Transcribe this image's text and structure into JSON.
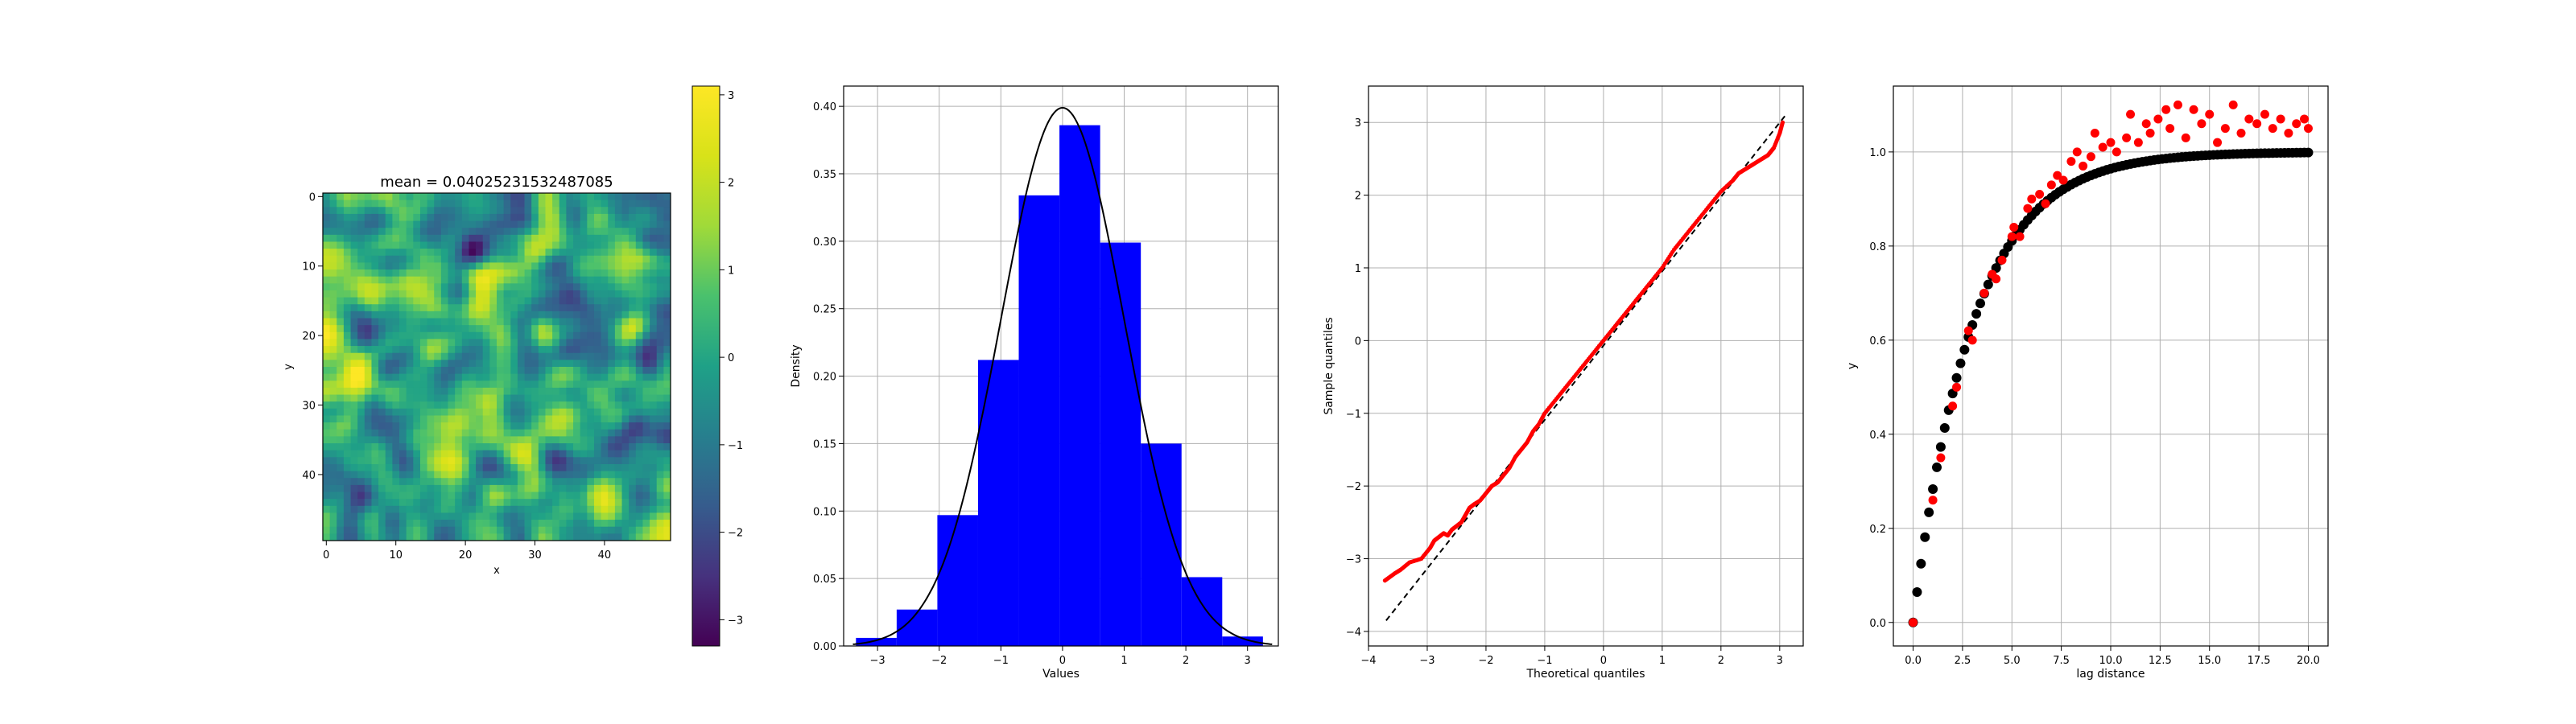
{
  "heatmap": {
    "title": "mean = 0.04025231532487085",
    "xlabel": "x",
    "ylabel": "y",
    "grid_size": 50,
    "xticks": [
      0,
      10,
      20,
      30,
      40
    ],
    "yticks": [
      0,
      10,
      20,
      30,
      40
    ],
    "colorbar_ticks": [
      3,
      2,
      1,
      0,
      -1,
      -2,
      -3
    ],
    "colorbar_tick_labels": [
      "3",
      "2",
      "1",
      "0",
      "−1",
      "−2",
      "−3"
    ],
    "vmin": -3.3,
    "vmax": 3.1,
    "colormap": "viridis"
  },
  "chart_data": [
    {
      "type": "heatmap",
      "title": "mean = 0.04025231532487085",
      "xlabel": "x",
      "ylabel": "y",
      "xlim": [
        0,
        49
      ],
      "ylim": [
        0,
        49
      ],
      "value_range": [
        -3.3,
        3.1
      ]
    },
    {
      "type": "bar",
      "subtype": "histogram",
      "xlabel": "Values",
      "ylabel": "Density",
      "bin_edges": [
        -3.35,
        -2.69,
        -2.03,
        -1.37,
        -0.71,
        -0.05,
        0.61,
        1.27,
        1.93,
        2.59,
        3.25
      ],
      "values": [
        0.006,
        0.027,
        0.097,
        0.212,
        0.334,
        0.386,
        0.299,
        0.15,
        0.051,
        0.007
      ],
      "bar_color": "#0000ff",
      "overlay": "normal pdf (mean 0, sd 1)",
      "xlim": [
        -3.55,
        3.5
      ],
      "ylim": [
        0,
        0.415
      ],
      "xticks": [
        -3,
        -2,
        -1,
        0,
        1,
        2,
        3
      ],
      "xtick_labels": [
        "−3",
        "−2",
        "−1",
        "0",
        "1",
        "2",
        "3"
      ],
      "yticks": [
        0,
        0.05,
        0.1,
        0.15,
        0.2,
        0.25,
        0.3,
        0.35,
        0.4
      ],
      "ytick_labels": [
        "0.00",
        "0.05",
        "0.10",
        "0.15",
        "0.20",
        "0.25",
        "0.30",
        "0.35",
        "0.40"
      ],
      "grid": true
    },
    {
      "type": "scatter",
      "subtype": "qq-plot",
      "xlabel": "Theoretical quantiles",
      "ylabel": "Sample quantiles",
      "xlim": [
        -4,
        3.4
      ],
      "ylim": [
        -4.2,
        3.5
      ],
      "xticks": [
        -4,
        -3,
        -2,
        -1,
        0,
        1,
        2,
        3
      ],
      "xtick_labels": [
        "−4",
        "−3",
        "−2",
        "−1",
        "0",
        "1",
        "2",
        "3"
      ],
      "yticks": [
        -4,
        -3,
        -2,
        -1,
        0,
        1,
        2,
        3
      ],
      "ytick_labels": [
        "−4",
        "−3",
        "−2",
        "−1",
        "0",
        "1",
        "2",
        "3"
      ],
      "reference_line": {
        "x": [
          -3.7,
          3.1
        ],
        "y": [
          -3.85,
          3.1
        ],
        "style": "dashed",
        "color": "#000000"
      },
      "points": {
        "x": [
          -3.72,
          -3.55,
          -3.45,
          -3.3,
          -3.1,
          -2.95,
          -2.88,
          -2.8,
          -2.72,
          -2.65,
          -2.58,
          -2.5,
          -2.42,
          -2.35,
          -2.28,
          -2.2,
          -2.1,
          -2.0,
          -1.9,
          -1.8,
          -1.7,
          -1.6,
          -1.5,
          -1.4,
          -1.3,
          -1.2,
          -1.1,
          -1.0,
          -0.8,
          -0.6,
          -0.4,
          -0.2,
          0.0,
          0.2,
          0.4,
          0.6,
          0.8,
          1.0,
          1.2,
          1.4,
          1.6,
          1.8,
          2.0,
          2.2,
          2.3,
          2.4,
          2.5,
          2.6,
          2.7,
          2.8,
          2.85,
          2.9,
          3.0,
          3.05
        ],
        "y": [
          -3.3,
          -3.2,
          -3.15,
          -3.05,
          -3.0,
          -2.85,
          -2.75,
          -2.7,
          -2.65,
          -2.68,
          -2.6,
          -2.55,
          -2.5,
          -2.4,
          -2.3,
          -2.25,
          -2.2,
          -2.1,
          -2.0,
          -1.95,
          -1.85,
          -1.75,
          -1.6,
          -1.5,
          -1.4,
          -1.25,
          -1.15,
          -1.0,
          -0.8,
          -0.6,
          -0.4,
          -0.2,
          0.0,
          0.2,
          0.4,
          0.6,
          0.8,
          1.0,
          1.25,
          1.45,
          1.65,
          1.85,
          2.05,
          2.2,
          2.3,
          2.35,
          2.4,
          2.45,
          2.5,
          2.55,
          2.6,
          2.65,
          2.85,
          3.0
        ],
        "color": "#ff0000"
      },
      "grid": true
    },
    {
      "type": "scatter",
      "subtype": "variogram",
      "xlabel": "lag distance",
      "ylabel": "y",
      "xlim": [
        -1.0,
        21.0
      ],
      "ylim": [
        -0.05,
        1.14
      ],
      "xticks": [
        0,
        2.5,
        5,
        7.5,
        10,
        12.5,
        15,
        17.5,
        20
      ],
      "xtick_labels": [
        "0.0",
        "2.5",
        "5.0",
        "7.5",
        "10.0",
        "12.5",
        "15.0",
        "17.5",
        "20.0"
      ],
      "yticks": [
        0,
        0.2,
        0.4,
        0.6,
        0.8,
        1.0
      ],
      "ytick_labels": [
        "0.0",
        "0.2",
        "0.4",
        "0.6",
        "0.8",
        "1.0"
      ],
      "series": [
        {
          "color": "#ff0000",
          "x": [
            0.0,
            1.0,
            1.4,
            2.0,
            2.2,
            2.8,
            3.0,
            3.6,
            4.0,
            4.2,
            4.5,
            5.0,
            5.1,
            5.4,
            5.8,
            6.0,
            6.4,
            6.7,
            7.0,
            7.3,
            7.6,
            8.0,
            8.3,
            8.6,
            9.0,
            9.2,
            9.6,
            10.0,
            10.3,
            10.8,
            11.0,
            11.4,
            11.8,
            12.0,
            12.4,
            12.8,
            13.0,
            13.4,
            13.8,
            14.2,
            14.6,
            15.0,
            15.4,
            15.8,
            16.2,
            16.6,
            17.0,
            17.4,
            17.8,
            18.2,
            18.6,
            19.0,
            19.4,
            19.8,
            20.0
          ],
          "y": [
            0.0,
            0.26,
            0.35,
            0.46,
            0.5,
            0.62,
            0.6,
            0.7,
            0.74,
            0.73,
            0.77,
            0.82,
            0.84,
            0.82,
            0.88,
            0.9,
            0.91,
            0.89,
            0.93,
            0.95,
            0.94,
            0.98,
            1.0,
            0.97,
            0.99,
            1.04,
            1.01,
            1.02,
            1.0,
            1.03,
            1.08,
            1.02,
            1.06,
            1.04,
            1.07,
            1.09,
            1.05,
            1.1,
            1.03,
            1.09,
            1.06,
            1.08,
            1.02,
            1.05,
            1.1,
            1.04,
            1.07,
            1.06,
            1.08,
            1.05,
            1.07,
            1.04,
            1.06,
            1.07,
            1.05
          ]
        },
        {
          "color": "#000000",
          "type": "exponential-model",
          "x_range": [
            0,
            20
          ],
          "sill": 1.0,
          "range_length": 3.0
        }
      ],
      "grid": true
    }
  ]
}
